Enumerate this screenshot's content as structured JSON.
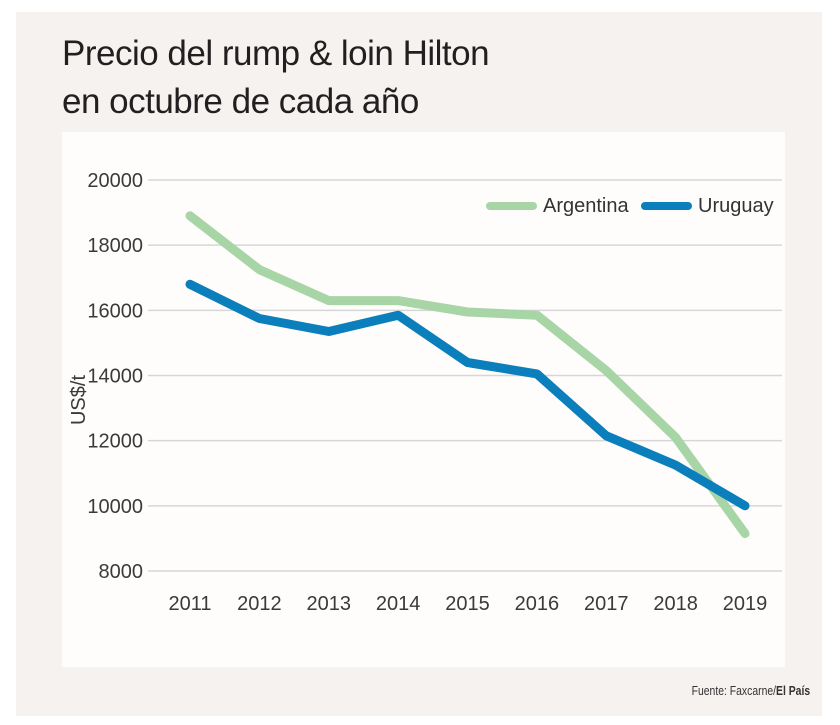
{
  "header": {
    "title_line1": "Precio del rump & loin Hilton",
    "title_line2": "en octubre de cada año"
  },
  "footer": {
    "source_prefix": "Fuente: Faxcarne/",
    "source_outlet": "El País"
  },
  "colors": {
    "argentina": "#a8d5a6",
    "uruguay": "#0a7fbc",
    "grid": "#d6d6d6",
    "panel_bg": "#fffdfc",
    "card_bg": "#f5f2f0"
  },
  "chart_data": {
    "type": "line",
    "title": "Precio del rump & loin Hilton en octubre de cada año",
    "xlabel": "",
    "ylabel": "US$/t",
    "x": [
      "2011",
      "2012",
      "2013",
      "2014",
      "2015",
      "2016",
      "2017",
      "2018",
      "2019"
    ],
    "ylim": [
      8000,
      20000
    ],
    "yticks": [
      8000,
      10000,
      12000,
      14000,
      16000,
      18000,
      20000
    ],
    "ytick_labels": [
      "8000",
      "10000",
      "12000",
      "14000",
      "16000",
      "18000",
      "20000"
    ],
    "grid": true,
    "legend_position": "top-right",
    "series": [
      {
        "name": "Argentina",
        "color": "#a8d5a6",
        "values": [
          18900,
          17250,
          16300,
          16300,
          15950,
          15850,
          14150,
          12100,
          9150
        ]
      },
      {
        "name": "Uruguay",
        "color": "#0a7fbc",
        "values": [
          16800,
          15750,
          15350,
          15850,
          14400,
          14050,
          12150,
          11250,
          10000
        ]
      }
    ]
  }
}
